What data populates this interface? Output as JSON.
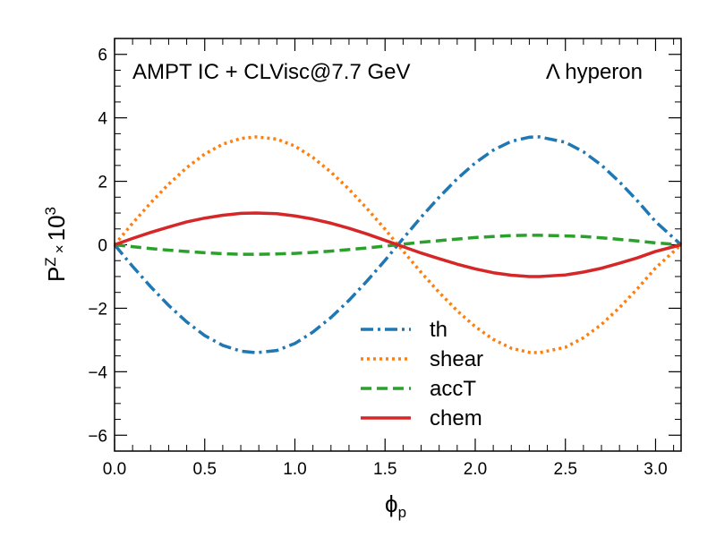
{
  "chart_data": {
    "type": "line",
    "xlabel": {
      "main": "ϕ",
      "sub": "p"
    },
    "ylabel": {
      "main": "P",
      "sup": "Z",
      "times": "×",
      "scale_base": "10",
      "scale_exp": "3"
    },
    "xlim": [
      0.0,
      3.1416
    ],
    "ylim": [
      -6.5,
      6.5
    ],
    "xticks": [
      0.0,
      0.5,
      1.0,
      1.5,
      2.0,
      2.5,
      3.0
    ],
    "xtick_labels": [
      "0.0",
      "0.5",
      "1.0",
      "1.5",
      "2.0",
      "2.5",
      "3.0"
    ],
    "yticks": [
      -6,
      -4,
      -2,
      0,
      2,
      4,
      6
    ],
    "ytick_labels": [
      "−6",
      "−4",
      "−2",
      "0",
      "2",
      "4",
      "6"
    ],
    "annotations": {
      "left": "AMPT IC + CLVisc@7.7 GeV",
      "right": "Λ hyperon"
    },
    "legend_position": "lower-center",
    "x": [
      0.0,
      0.1,
      0.2,
      0.3,
      0.4,
      0.5,
      0.6,
      0.7,
      0.785,
      0.9,
      1.0,
      1.1,
      1.2,
      1.3,
      1.4,
      1.5,
      1.5708,
      1.7,
      1.8,
      1.9,
      2.0,
      2.1,
      2.2,
      2.3,
      2.356,
      2.5,
      2.6,
      2.7,
      2.8,
      2.9,
      3.0,
      3.1416
    ],
    "series": [
      {
        "name": "th",
        "color": "#1f77b4",
        "dash": "dashdot",
        "values": [
          0.0,
          -0.68,
          -1.32,
          -1.91,
          -2.43,
          -2.86,
          -3.17,
          -3.35,
          -3.4,
          -3.33,
          -3.11,
          -2.75,
          -2.29,
          -1.75,
          -1.14,
          -0.49,
          0.0,
          0.87,
          1.5,
          2.08,
          2.58,
          2.98,
          3.26,
          3.39,
          3.4,
          3.23,
          2.93,
          2.51,
          1.98,
          1.38,
          0.73,
          0.0
        ]
      },
      {
        "name": "shear",
        "color": "#ff7f0e",
        "dash": "dotted",
        "values": [
          0.0,
          0.68,
          1.32,
          1.91,
          2.43,
          2.86,
          3.17,
          3.35,
          3.4,
          3.33,
          3.11,
          2.75,
          2.29,
          1.75,
          1.14,
          0.49,
          0.0,
          -0.87,
          -1.5,
          -2.08,
          -2.58,
          -2.98,
          -3.26,
          -3.39,
          -3.4,
          -3.23,
          -2.93,
          -2.51,
          -1.98,
          -1.38,
          -0.73,
          0.0
        ]
      },
      {
        "name": "accT",
        "color": "#2ca02c",
        "dash": "dashed",
        "values": [
          0.0,
          -0.06,
          -0.12,
          -0.17,
          -0.21,
          -0.25,
          -0.28,
          -0.3,
          -0.3,
          -0.29,
          -0.27,
          -0.24,
          -0.2,
          -0.15,
          -0.1,
          -0.04,
          0.0,
          0.08,
          0.13,
          0.18,
          0.23,
          0.26,
          0.29,
          0.3,
          0.3,
          0.28,
          0.26,
          0.22,
          0.17,
          0.12,
          0.06,
          0.0
        ]
      },
      {
        "name": "chem",
        "color": "#d62728",
        "dash": "solid",
        "values": [
          0.0,
          0.2,
          0.39,
          0.56,
          0.72,
          0.84,
          0.93,
          0.99,
          1.0,
          0.98,
          0.91,
          0.81,
          0.68,
          0.52,
          0.34,
          0.14,
          0.0,
          -0.26,
          -0.44,
          -0.61,
          -0.76,
          -0.88,
          -0.96,
          -1.0,
          -1.0,
          -0.95,
          -0.86,
          -0.74,
          -0.58,
          -0.41,
          -0.21,
          0.0
        ]
      }
    ]
  }
}
